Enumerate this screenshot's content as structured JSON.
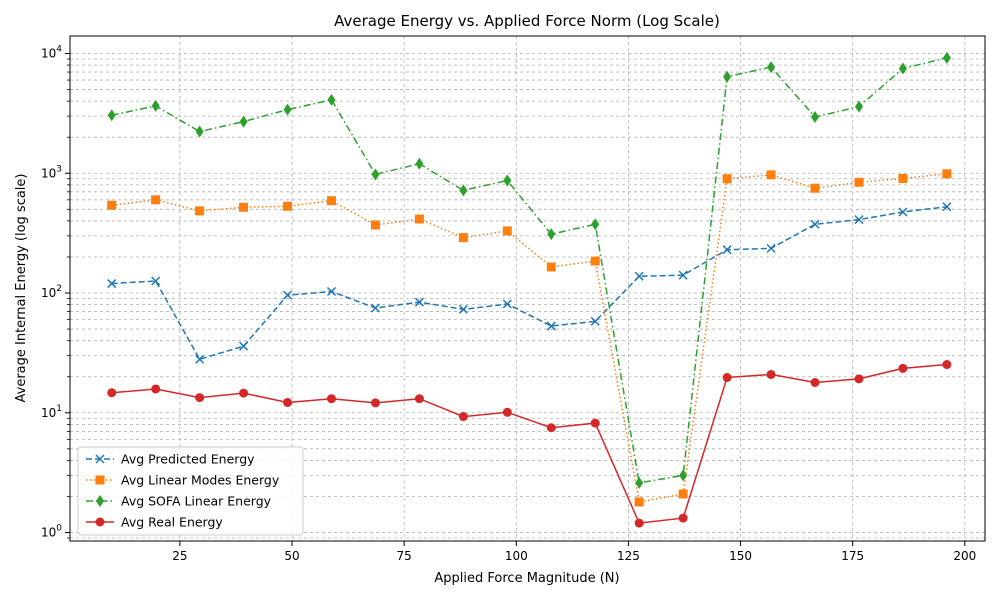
{
  "chart_data": {
    "type": "line",
    "title": "Average Energy vs. Applied Force Norm (Log Scale)",
    "xlabel": "Applied Force Magnitude (N)",
    "ylabel": "Average Internal Energy (log scale)",
    "xlim": [
      0.5,
      204.5
    ],
    "ylim": [
      0.85,
      14000
    ],
    "yscale": "log",
    "grid": true,
    "legend_position": "lower-left",
    "x_ticks": [
      25,
      50,
      75,
      100,
      125,
      150,
      175,
      200
    ],
    "x_tick_labels": [
      "25",
      "50",
      "75",
      "100",
      "125",
      "150",
      "175",
      "200"
    ],
    "y_ticks": [
      1,
      10,
      100,
      1000,
      10000
    ],
    "y_tick_labels": [
      {
        "base": "10",
        "exp": "0"
      },
      {
        "base": "10",
        "exp": "1"
      },
      {
        "base": "10",
        "exp": "2"
      },
      {
        "base": "10",
        "exp": "3"
      },
      {
        "base": "10",
        "exp": "4"
      }
    ],
    "x": [
      9.8,
      19.6,
      29.4,
      39.2,
      49.0,
      58.8,
      68.6,
      78.4,
      88.2,
      98.0,
      107.8,
      117.6,
      127.4,
      137.2,
      147.0,
      156.8,
      166.6,
      176.4,
      186.2,
      196.0
    ],
    "series": [
      {
        "name": "Avg Predicted Energy",
        "color": "#1f77b4",
        "line_style": "dashed",
        "marker": "x",
        "values": [
          120,
          126,
          28,
          36,
          96,
          103,
          75,
          84,
          73,
          81,
          53,
          58,
          138,
          141,
          230,
          236,
          375,
          410,
          475,
          525
        ]
      },
      {
        "name": "Avg Linear Modes Energy",
        "color": "#ff7f0e",
        "line_style": "dotted",
        "marker": "square",
        "values": [
          540,
          600,
          485,
          520,
          530,
          590,
          370,
          415,
          290,
          330,
          165,
          185,
          1.8,
          2.1,
          900,
          970,
          750,
          840,
          905,
          990
        ]
      },
      {
        "name": "Avg SOFA Linear Energy",
        "color": "#2ca02c",
        "line_style": "dashdot",
        "marker": "diamond",
        "values": [
          3050,
          3650,
          2230,
          2700,
          3400,
          4100,
          980,
          1200,
          720,
          870,
          310,
          375,
          2.6,
          3.0,
          6400,
          7700,
          2950,
          3600,
          7500,
          9200
        ]
      },
      {
        "name": "Avg Real Energy",
        "color": "#d62728",
        "line_style": "solid",
        "marker": "circle",
        "values": [
          14.7,
          15.8,
          13.4,
          14.6,
          12.2,
          13.1,
          12.1,
          13.1,
          9.3,
          10.1,
          7.5,
          8.2,
          1.2,
          1.32,
          19.7,
          20.9,
          17.9,
          19.2,
          23.5,
          25.3
        ]
      }
    ]
  }
}
